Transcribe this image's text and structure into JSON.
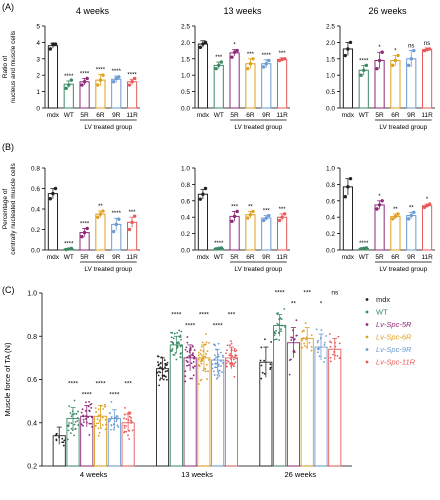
{
  "chart_data": [
    {
      "panel": "(A)",
      "type": "bar",
      "title": "4 weeks",
      "ylabel": [
        "Ratio of",
        "nucleus and muscle cells"
      ],
      "ylim": [
        0,
        5
      ],
      "yticks": [
        0,
        1,
        2,
        3,
        4,
        5
      ],
      "categories": [
        "mdx",
        "WT",
        "5R",
        "6R",
        "9R",
        "11R"
      ],
      "group_label": "LV treated group",
      "values": [
        3.8,
        1.45,
        1.6,
        1.7,
        1.75,
        1.6
      ],
      "errors": [
        0.15,
        0.2,
        0.2,
        0.35,
        0.2,
        0.15
      ],
      "points": [
        [
          3.6,
          3.9,
          3.9
        ],
        [
          1.2,
          1.4,
          1.7
        ],
        [
          1.4,
          1.6,
          1.8
        ],
        [
          1.4,
          1.7,
          2.0
        ],
        [
          1.6,
          1.8,
          1.9
        ],
        [
          1.4,
          1.6,
          1.8
        ]
      ],
      "significance": [
        "",
        "****",
        "****",
        "****",
        "****",
        "****"
      ]
    },
    {
      "panel": "(A)",
      "type": "bar",
      "title": "13 weeks",
      "ylim": [
        0,
        2.5
      ],
      "yticks": [
        0.0,
        0.5,
        1.0,
        1.5,
        2.0,
        2.5
      ],
      "categories": [
        "mdx",
        "WT",
        "5R",
        "6R",
        "9R",
        "11R"
      ],
      "group_label": "LV treated group",
      "values": [
        1.95,
        1.3,
        1.68,
        1.35,
        1.35,
        1.48
      ],
      "errors": [
        0.1,
        0.1,
        0.1,
        0.15,
        0.12,
        0.05
      ],
      "points": [
        [
          1.85,
          1.95,
          2.0
        ],
        [
          1.2,
          1.3,
          1.4
        ],
        [
          1.55,
          1.7,
          1.75
        ],
        [
          1.2,
          1.35,
          1.5
        ],
        [
          1.25,
          1.35,
          1.45
        ],
        [
          1.45,
          1.48,
          1.5
        ]
      ],
      "significance": [
        "",
        "***",
        "*",
        "***",
        "****",
        "***"
      ]
    },
    {
      "panel": "(A)",
      "type": "bar",
      "title": "26 weeks",
      "ylim": [
        0,
        2.5
      ],
      "yticks": [
        0.0,
        0.5,
        1.0,
        1.5,
        2.0,
        2.5
      ],
      "categories": [
        "mdx",
        "WT",
        "5R",
        "6R",
        "9R",
        "11R"
      ],
      "group_label": "LV treated group",
      "values": [
        1.8,
        1.15,
        1.45,
        1.45,
        1.5,
        1.78
      ],
      "errors": [
        0.2,
        0.15,
        0.25,
        0.15,
        0.25,
        0.05
      ],
      "points": [
        [
          1.6,
          1.8,
          2.0
        ],
        [
          1.0,
          1.15,
          1.3
        ],
        [
          1.2,
          1.45,
          1.7
        ],
        [
          1.3,
          1.45,
          1.6
        ],
        [
          1.3,
          1.5,
          1.75
        ],
        [
          1.75,
          1.78,
          1.8
        ]
      ],
      "significance": [
        "",
        "****",
        "*",
        "*",
        "ns",
        "ns"
      ]
    },
    {
      "panel": "(B)",
      "type": "bar",
      "title": "",
      "ylabel": [
        "Percentage of",
        "centrally nucleated muscle cells"
      ],
      "ylim": [
        0,
        0.8
      ],
      "yticks": [
        0.0,
        0.2,
        0.4,
        0.6,
        0.8
      ],
      "categories": [
        "mdx",
        "WT",
        "5R",
        "6R",
        "9R",
        "11R"
      ],
      "group_label": "LV treated group",
      "values": [
        0.55,
        0.01,
        0.17,
        0.35,
        0.25,
        0.27
      ],
      "errors": [
        0.05,
        0.005,
        0.04,
        0.03,
        0.06,
        0.05
      ],
      "points": [
        [
          0.5,
          0.55,
          0.6
        ],
        [
          0.005,
          0.01,
          0.015
        ],
        [
          0.13,
          0.17,
          0.21
        ],
        [
          0.32,
          0.35,
          0.38
        ],
        [
          0.18,
          0.25,
          0.3
        ],
        [
          0.2,
          0.27,
          0.33
        ]
      ],
      "significance": [
        "",
        "****",
        "****",
        "**",
        "****",
        "***"
      ]
    },
    {
      "panel": "(B)",
      "type": "bar",
      "title": "",
      "ylim": [
        0,
        1.0
      ],
      "yticks": [
        0.0,
        0.2,
        0.4,
        0.6,
        0.8,
        1.0
      ],
      "categories": [
        "mdx",
        "WT",
        "5R",
        "6R",
        "9R",
        "11R"
      ],
      "group_label": "LV treated group",
      "values": [
        0.68,
        0.02,
        0.41,
        0.43,
        0.39,
        0.4
      ],
      "errors": [
        0.06,
        0.005,
        0.06,
        0.04,
        0.03,
        0.04
      ],
      "points": [
        [
          0.62,
          0.68,
          0.75
        ],
        [
          0.015,
          0.02,
          0.025
        ],
        [
          0.35,
          0.41,
          0.47
        ],
        [
          0.39,
          0.43,
          0.47
        ],
        [
          0.36,
          0.39,
          0.42
        ],
        [
          0.36,
          0.4,
          0.44
        ]
      ],
      "significance": [
        "",
        "****",
        "***",
        "**",
        "***",
        "***"
      ]
    },
    {
      "panel": "(B)",
      "type": "bar",
      "title": "",
      "ylim": [
        0,
        1.0
      ],
      "yticks": [
        0.0,
        0.2,
        0.4,
        0.6,
        0.8,
        1.0
      ],
      "categories": [
        "mdx",
        "WT",
        "5R",
        "6R",
        "9R",
        "11R"
      ],
      "group_label": "LV treated group",
      "values": [
        0.77,
        0.02,
        0.55,
        0.41,
        0.42,
        0.54
      ],
      "errors": [
        0.1,
        0.005,
        0.05,
        0.03,
        0.04,
        0.02
      ],
      "points": [
        [
          0.65,
          0.77,
          0.87
        ],
        [
          0.015,
          0.02,
          0.025
        ],
        [
          0.5,
          0.55,
          0.6
        ],
        [
          0.38,
          0.41,
          0.44
        ],
        [
          0.38,
          0.42,
          0.46
        ],
        [
          0.52,
          0.54,
          0.56
        ]
      ],
      "significance": [
        "",
        "****",
        "*",
        "**",
        "**",
        "*"
      ]
    },
    {
      "panel": "(C)",
      "type": "bar",
      "ylabel": "Muscle force of TA (N)",
      "ylim": [
        0.2,
        1.0
      ],
      "yticks": [
        0.2,
        0.4,
        0.6,
        0.8,
        1.0
      ],
      "categories": [
        "4 weeks",
        "13 weeks",
        "26 weeks"
      ],
      "series": [
        {
          "name": "mdx",
          "color": "#222222",
          "values": [
            0.34,
            0.65,
            0.68
          ],
          "errors": [
            0.04,
            0.05,
            0.07
          ],
          "n": [
            12,
            40,
            12
          ]
        },
        {
          "name": "WT",
          "color": "#3b8a64",
          "values": [
            0.42,
            0.76,
            0.85
          ],
          "errors": [
            0.05,
            0.04,
            0.05
          ],
          "n": [
            28,
            40,
            24
          ]
        },
        {
          "name": "Lv-Spc-5R",
          "color": "#8e2a78",
          "values": [
            0.43,
            0.7,
            0.77
          ],
          "errors": [
            0.05,
            0.06,
            0.07
          ],
          "n": [
            28,
            40,
            16
          ]
        },
        {
          "name": "Lv-Spc-6R",
          "color": "#e0a020",
          "values": [
            0.43,
            0.7,
            0.79
          ],
          "errors": [
            0.05,
            0.06,
            0.05
          ],
          "n": [
            28,
            40,
            16
          ]
        },
        {
          "name": "Lv-Spc-9R",
          "color": "#6b9bd2",
          "values": [
            0.42,
            0.69,
            0.75
          ],
          "errors": [
            0.04,
            0.05,
            0.06
          ],
          "n": [
            24,
            40,
            16
          ]
        },
        {
          "name": "Lv-Spc-11R",
          "color": "#e85a5a",
          "values": [
            0.4,
            0.7,
            0.74
          ],
          "errors": [
            0.04,
            0.05,
            0.05
          ],
          "n": [
            24,
            40,
            16
          ]
        }
      ],
      "significance": [
        [
          "",
          "****",
          "****",
          "****",
          "****",
          "***"
        ],
        [
          "",
          "****",
          "****",
          "****",
          "****",
          "***"
        ],
        [
          "",
          "****",
          "**",
          "***",
          "*",
          "ns"
        ]
      ]
    }
  ],
  "panel_labels": {
    "a": "(A)",
    "b": "(B)",
    "c": "(C)"
  },
  "bar_colors": [
    "#222222",
    "#3b8a64",
    "#8e2a78",
    "#e0a020",
    "#6b9bd2",
    "#e85a5a"
  ]
}
